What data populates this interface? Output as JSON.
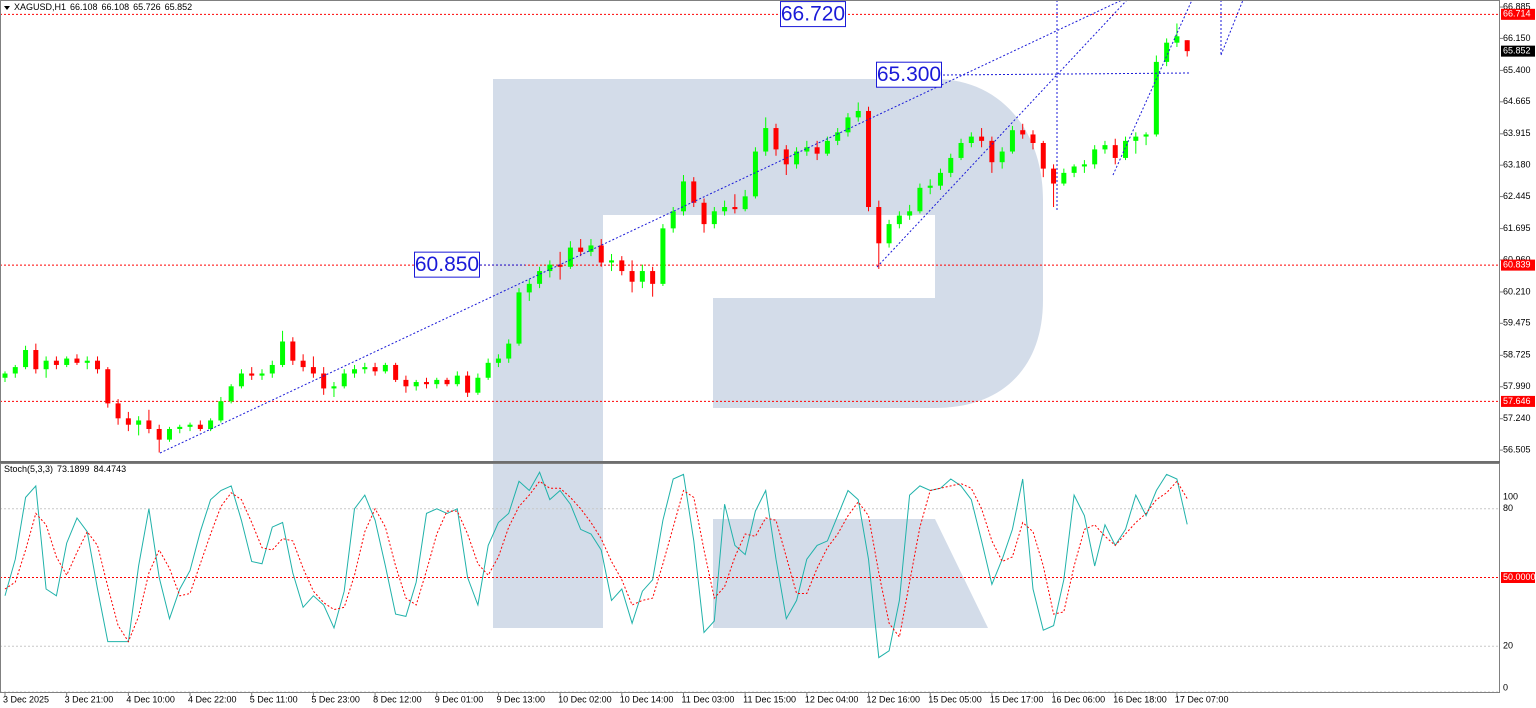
{
  "chart_data": [
    {
      "type": "candlestick",
      "symbol": "XAGUSD,H1",
      "up_color": "#00ff00",
      "down_color": "#ff0000",
      "ylim": [
        56.25,
        67.05
      ],
      "yticks": [
        56.505,
        {
          "value": 57.24,
          "label": "57.240"
        },
        {
          "value": 57.99,
          "label": "57.990"
        },
        58.725,
        59.475,
        {
          "value": 60.21,
          "label": "60.210"
        },
        {
          "value": 60.96,
          "label": "60.960"
        },
        61.695,
        62.445,
        {
          "value": 63.18,
          "label": "63.180"
        },
        63.915,
        64.665,
        {
          "value": 65.4,
          "label": "65.400"
        },
        {
          "value": 66.15,
          "label": "66.150"
        },
        66.885
      ],
      "levels": [
        66.714,
        60.839,
        57.646
      ],
      "level_color": "#ff0000",
      "annotations": [
        {
          "value": 66.72,
          "label": "66.720"
        },
        {
          "value": 65.3,
          "label": "65.300"
        },
        {
          "value": 60.85,
          "label": "60.850"
        }
      ],
      "xticks": [
        {
          "value": 0,
          "label": "3 Dec 2025"
        },
        {
          "value": 6,
          "label": "3 Dec 21:00"
        },
        {
          "value": 12,
          "label": "4 Dec 10:00"
        },
        {
          "value": 18,
          "label": "4 Dec 22:00"
        },
        {
          "value": 24,
          "label": "5 Dec 11:00"
        },
        {
          "value": 30,
          "label": "5 Dec 23:00"
        },
        {
          "value": 36,
          "label": "8 Dec 12:00"
        },
        {
          "value": 42,
          "label": "9 Dec 01:00"
        },
        {
          "value": 48,
          "label": "9 Dec 13:00"
        },
        {
          "value": 54,
          "label": "10 Dec 02:00"
        },
        {
          "value": 60,
          "label": "10 Dec 14:00"
        },
        {
          "value": 66,
          "label": "11 Dec 03:00"
        },
        {
          "value": 72,
          "label": "11 Dec 15:00"
        },
        {
          "value": 78,
          "label": "12 Dec 04:00"
        },
        {
          "value": 84,
          "label": "12 Dec 16:00"
        },
        {
          "value": 90,
          "label": "15 Dec 05:00"
        },
        {
          "value": 96,
          "label": "15 Dec 17:00"
        },
        {
          "value": 102,
          "label": "16 Dec 06:00"
        },
        {
          "value": 108,
          "label": "16 Dec 18:00"
        },
        {
          "value": 114,
          "label": "17 Dec 07:00"
        }
      ],
      "ohlc": [
        [
          58.2,
          58.35,
          58.1,
          58.3
        ],
        [
          58.3,
          58.5,
          58.2,
          58.45
        ],
        [
          58.45,
          58.95,
          58.4,
          58.85
        ],
        [
          58.85,
          59.0,
          58.3,
          58.4
        ],
        [
          58.4,
          58.7,
          58.2,
          58.6
        ],
        [
          58.6,
          58.7,
          58.4,
          58.5
        ],
        [
          58.5,
          58.7,
          58.45,
          58.65
        ],
        [
          58.65,
          58.75,
          58.5,
          58.55
        ],
        [
          58.55,
          58.7,
          58.4,
          58.6
        ],
        [
          58.6,
          58.7,
          58.3,
          58.4
        ],
        [
          58.4,
          58.45,
          57.5,
          57.6
        ],
        [
          57.6,
          57.7,
          57.1,
          57.25
        ],
        [
          57.25,
          57.4,
          56.95,
          57.1
        ],
        [
          57.1,
          57.3,
          56.85,
          57.2
        ],
        [
          57.2,
          57.45,
          56.9,
          57.0
        ],
        [
          57.0,
          57.1,
          56.45,
          56.75
        ],
        [
          56.75,
          57.05,
          56.7,
          57.0
        ],
        [
          57.0,
          57.1,
          56.9,
          57.05
        ],
        [
          57.05,
          57.15,
          56.95,
          57.1
        ],
        [
          57.1,
          57.2,
          56.95,
          57.0
        ],
        [
          57.0,
          57.25,
          56.95,
          57.2
        ],
        [
          57.2,
          57.75,
          57.15,
          57.65
        ],
        [
          57.65,
          58.05,
          57.6,
          58.0
        ],
        [
          58.0,
          58.4,
          57.95,
          58.3
        ],
        [
          58.3,
          58.45,
          58.15,
          58.25
        ],
        [
          58.25,
          58.4,
          58.15,
          58.3
        ],
        [
          58.3,
          58.6,
          58.2,
          58.5
        ],
        [
          58.5,
          59.3,
          58.45,
          59.05
        ],
        [
          59.05,
          59.15,
          58.5,
          58.6
        ],
        [
          58.6,
          58.75,
          58.35,
          58.45
        ],
        [
          58.45,
          58.7,
          58.2,
          58.3
        ],
        [
          58.3,
          58.45,
          57.8,
          57.95
        ],
        [
          57.95,
          58.1,
          57.75,
          58.0
        ],
        [
          58.0,
          58.4,
          57.95,
          58.3
        ],
        [
          58.3,
          58.5,
          58.2,
          58.4
        ],
        [
          58.4,
          58.55,
          58.3,
          58.45
        ],
        [
          58.45,
          58.55,
          58.25,
          58.35
        ],
        [
          58.35,
          58.55,
          58.3,
          58.5
        ],
        [
          58.5,
          58.55,
          58.1,
          58.15
        ],
        [
          58.15,
          58.25,
          57.85,
          58.0
        ],
        [
          58.0,
          58.15,
          57.9,
          58.1
        ],
        [
          58.1,
          58.2,
          57.95,
          58.05
        ],
        [
          58.05,
          58.2,
          57.95,
          58.15
        ],
        [
          58.15,
          58.2,
          58.0,
          58.05
        ],
        [
          58.05,
          58.35,
          58.0,
          58.25
        ],
        [
          58.25,
          58.35,
          57.75,
          57.85
        ],
        [
          57.85,
          58.3,
          57.8,
          58.2
        ],
        [
          58.2,
          58.65,
          58.15,
          58.55
        ],
        [
          58.55,
          58.75,
          58.45,
          58.65
        ],
        [
          58.65,
          59.1,
          58.55,
          59.0
        ],
        [
          59.0,
          60.3,
          58.95,
          60.2
        ],
        [
          60.2,
          60.5,
          60.0,
          60.4
        ],
        [
          60.4,
          60.8,
          60.3,
          60.7
        ],
        [
          60.7,
          60.95,
          60.55,
          60.85
        ],
        [
          60.85,
          61.15,
          60.5,
          60.8
        ],
        [
          60.8,
          61.4,
          60.75,
          61.25
        ],
        [
          61.25,
          61.45,
          61.05,
          61.15
        ],
        [
          61.15,
          61.45,
          61.05,
          61.3
        ],
        [
          61.3,
          61.45,
          60.8,
          60.9
        ],
        [
          60.9,
          61.1,
          60.7,
          60.95
        ],
        [
          60.95,
          61.05,
          60.6,
          60.7
        ],
        [
          60.7,
          60.95,
          60.2,
          60.45
        ],
        [
          60.45,
          60.85,
          60.3,
          60.7
        ],
        [
          60.7,
          60.8,
          60.1,
          60.4
        ],
        [
          60.4,
          61.8,
          60.35,
          61.7
        ],
        [
          61.7,
          62.2,
          61.6,
          62.1
        ],
        [
          62.1,
          62.95,
          62.0,
          62.8
        ],
        [
          62.8,
          62.9,
          62.2,
          62.3
        ],
        [
          62.3,
          62.4,
          61.6,
          61.8
        ],
        [
          61.8,
          62.2,
          61.7,
          62.1
        ],
        [
          62.1,
          62.35,
          62.0,
          62.2
        ],
        [
          62.2,
          62.5,
          62.05,
          62.15
        ],
        [
          62.15,
          62.6,
          62.1,
          62.45
        ],
        [
          62.45,
          63.6,
          62.4,
          63.5
        ],
        [
          63.5,
          64.3,
          63.4,
          64.05
        ],
        [
          64.05,
          64.15,
          63.4,
          63.55
        ],
        [
          63.55,
          63.65,
          62.95,
          63.2
        ],
        [
          63.2,
          63.6,
          63.1,
          63.5
        ],
        [
          63.5,
          63.75,
          63.4,
          63.6
        ],
        [
          63.6,
          63.75,
          63.3,
          63.45
        ],
        [
          63.45,
          63.85,
          63.4,
          63.75
        ],
        [
          63.75,
          64.05,
          63.65,
          63.95
        ],
        [
          63.95,
          64.4,
          63.85,
          64.3
        ],
        [
          64.3,
          64.65,
          64.2,
          64.45
        ],
        [
          64.45,
          64.55,
          62.1,
          62.2
        ],
        [
          62.2,
          62.35,
          60.75,
          61.35
        ],
        [
          61.35,
          61.9,
          61.25,
          61.8
        ],
        [
          61.8,
          62.1,
          61.7,
          62.0
        ],
        [
          62.0,
          62.25,
          61.9,
          62.1
        ],
        [
          62.1,
          62.75,
          62.05,
          62.65
        ],
        [
          62.65,
          62.85,
          62.5,
          62.7
        ],
        [
          62.7,
          63.1,
          62.6,
          63.0
        ],
        [
          63.0,
          63.45,
          62.9,
          63.35
        ],
        [
          63.35,
          63.8,
          63.3,
          63.7
        ],
        [
          63.7,
          63.95,
          63.6,
          63.85
        ],
        [
          63.85,
          64.05,
          63.6,
          63.75
        ],
        [
          63.75,
          63.85,
          63.0,
          63.25
        ],
        [
          63.25,
          63.6,
          63.1,
          63.5
        ],
        [
          63.5,
          64.1,
          63.45,
          64.0
        ],
        [
          64.0,
          64.15,
          63.8,
          63.9
        ],
        [
          63.9,
          64.0,
          63.55,
          63.7
        ],
        [
          63.7,
          63.75,
          62.9,
          63.1
        ],
        [
          63.1,
          63.2,
          62.2,
          62.75
        ],
        [
          62.75,
          63.1,
          62.7,
          63.0
        ],
        [
          63.0,
          63.2,
          62.9,
          63.15
        ],
        [
          63.15,
          63.3,
          63.0,
          63.2
        ],
        [
          63.2,
          63.65,
          63.1,
          63.55
        ],
        [
          63.55,
          63.75,
          63.45,
          63.65
        ],
        [
          63.65,
          63.8,
          63.2,
          63.35
        ],
        [
          63.35,
          63.85,
          63.3,
          63.75
        ],
        [
          63.75,
          63.95,
          63.45,
          63.85
        ],
        [
          63.85,
          63.95,
          63.65,
          63.9
        ],
        [
          63.9,
          65.75,
          63.85,
          65.6
        ],
        [
          65.6,
          66.15,
          65.5,
          66.05
        ],
        [
          66.05,
          66.5,
          65.95,
          66.2
        ],
        [
          66.108,
          66.108,
          65.726,
          65.852
        ]
      ]
    },
    {
      "type": "line",
      "title": "Stoch(5,3,3)",
      "ylim": [
        0,
        100
      ],
      "yticks": [
        0,
        20,
        80,
        100
      ],
      "grid": true,
      "levels": [
        {
          "value": 50,
          "label": "50.0000"
        }
      ],
      "level_color": "#ff0000",
      "series": [
        {
          "color": "#20b2aa",
          "style": "solid",
          "values": [
            42,
            58,
            85,
            90,
            45,
            42,
            65,
            76,
            70,
            45,
            22,
            22,
            22,
            55,
            80,
            50,
            32,
            45,
            53,
            70,
            84,
            88,
            90,
            75,
            57,
            56,
            72,
            74,
            52,
            37,
            42,
            38,
            28,
            44,
            80,
            86,
            75,
            55,
            34,
            33,
            48,
            78,
            80,
            78,
            80,
            50,
            38,
            64,
            74,
            78,
            92,
            88,
            96,
            84,
            88,
            82,
            71,
            69,
            62,
            40,
            45,
            30,
            44,
            49,
            75,
            93,
            95,
            66,
            26,
            31,
            82,
            64,
            60,
            79,
            88,
            58,
            32,
            40,
            58,
            64,
            66,
            77,
            88,
            84,
            58,
            15,
            18,
            40,
            86,
            90,
            88,
            89,
            93,
            90,
            84,
            66,
            47,
            58,
            71,
            93,
            45,
            27,
            29,
            49,
            86,
            77,
            55,
            73,
            64,
            71,
            86,
            77,
            88,
            95,
            93,
            73.1899
          ]
        },
        {
          "color": "#ff0000",
          "style": "dotted",
          "values": [
            45,
            48,
            62,
            78,
            73,
            59,
            51,
            61,
            70,
            64,
            46,
            29,
            22,
            33,
            52,
            62,
            54,
            42,
            43,
            56,
            69,
            81,
            87,
            84,
            74,
            63,
            62,
            67,
            66,
            54,
            44,
            39,
            36,
            37,
            51,
            70,
            80,
            72,
            55,
            41,
            38,
            53,
            69,
            79,
            79,
            69,
            56,
            51,
            59,
            72,
            81,
            86,
            92,
            89,
            89,
            85,
            80,
            74,
            67,
            57,
            49,
            38,
            40,
            41,
            56,
            72,
            88,
            85,
            62,
            41,
            46,
            59,
            69,
            68,
            76,
            75,
            59,
            43,
            43,
            54,
            63,
            69,
            77,
            83,
            77,
            52,
            30,
            24,
            48,
            72,
            88,
            89,
            90,
            91,
            89,
            80,
            66,
            57,
            59,
            74,
            70,
            55,
            34,
            35,
            55,
            71,
            73,
            68,
            64,
            69,
            74,
            78,
            84,
            87,
            92,
            84.4743
          ]
        }
      ]
    }
  ]
}
